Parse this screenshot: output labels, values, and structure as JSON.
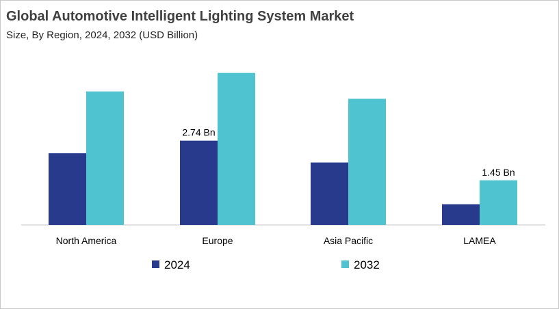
{
  "chart_data": {
    "type": "bar",
    "title": "Global Automotive Intelligent Lighting System Market",
    "subtitle": "Size, By Region, 2024, 2032 (USD Billion)",
    "categories": [
      "North America",
      "Europe",
      "Asia Pacific",
      "LAMEA"
    ],
    "series": [
      {
        "name": "2024",
        "color": "#283a8c",
        "values": [
          2.33,
          2.74,
          2.03,
          0.67
        ]
      },
      {
        "name": "2032",
        "color": "#4fc4d0",
        "values": [
          4.34,
          4.94,
          4.1,
          1.45
        ]
      }
    ],
    "data_labels": [
      {
        "series": 0,
        "category": 1,
        "text": "2.74 Bn"
      },
      {
        "series": 1,
        "category": 3,
        "text": "1.45 Bn"
      }
    ],
    "ylim": [
      0,
      5.2
    ],
    "grid": false,
    "legend_position": "bottom"
  }
}
